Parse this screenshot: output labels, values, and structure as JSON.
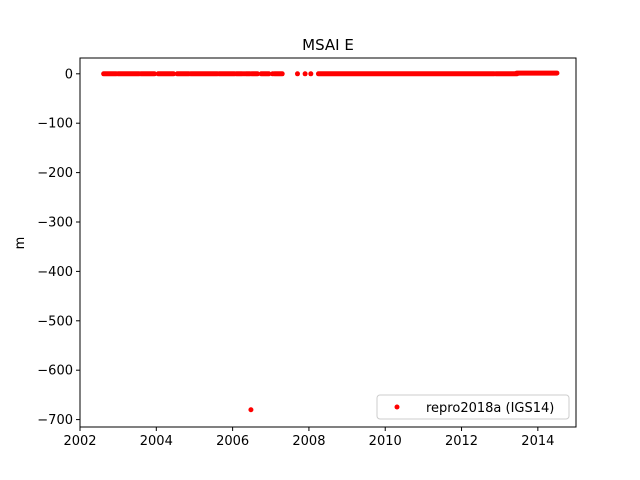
{
  "chart_data": {
    "type": "scatter",
    "title": "MSAI E",
    "xlabel": "",
    "ylabel": "m",
    "xlim": [
      2002.0,
      2015.0
    ],
    "ylim": [
      -715,
      32
    ],
    "xticks": [
      2002,
      2004,
      2006,
      2008,
      2010,
      2012,
      2014
    ],
    "yticks": [
      0,
      -100,
      -200,
      -300,
      -400,
      -500,
      -600,
      -700
    ],
    "ytick_labels": [
      "0",
      "−100",
      "−200",
      "−300",
      "−400",
      "−500",
      "−600",
      "−700"
    ],
    "grid": false,
    "legend_position": "lower-right",
    "series": [
      {
        "name": "repro2018a (IGS14)",
        "color": "#ff0000",
        "marker": "dot",
        "segments": [
          {
            "x_start": 2002.62,
            "x_end": 2002.95,
            "y": 0
          },
          {
            "x_start": 2003.0,
            "x_end": 2003.55,
            "y": 0
          },
          {
            "x_start": 2003.6,
            "x_end": 2003.95,
            "y": 0
          },
          {
            "x_start": 2004.05,
            "x_end": 2004.45,
            "y": 0
          },
          {
            "x_start": 2004.55,
            "x_end": 2004.85,
            "y": 0
          },
          {
            "x_start": 2004.9,
            "x_end": 2005.6,
            "y": 0
          },
          {
            "x_start": 2005.65,
            "x_end": 2006.05,
            "y": 0
          },
          {
            "x_start": 2006.1,
            "x_end": 2006.25,
            "y": 0
          },
          {
            "x_start": 2006.35,
            "x_end": 2006.45,
            "y": 0
          },
          {
            "x_start": 2006.5,
            "x_end": 2006.65,
            "y": 0
          },
          {
            "x_start": 2006.75,
            "x_end": 2006.95,
            "y": 0
          },
          {
            "x_start": 2007.1,
            "x_end": 2007.3,
            "y": 0
          },
          {
            "x_start": 2008.25,
            "x_end": 2012.85,
            "y": 0
          },
          {
            "x_start": 2012.9,
            "x_end": 2013.45,
            "y": 0
          },
          {
            "x_start": 2013.45,
            "x_end": 2014.5,
            "y": 1.5
          }
        ],
        "points": [
          {
            "x": 2006.48,
            "y": -680
          },
          {
            "x": 2007.7,
            "y": 0
          },
          {
            "x": 2007.9,
            "y": 0
          },
          {
            "x": 2008.05,
            "y": 0
          },
          {
            "x": 2006.3,
            "y": 0
          },
          {
            "x": 2007.05,
            "y": 0
          }
        ]
      }
    ]
  }
}
